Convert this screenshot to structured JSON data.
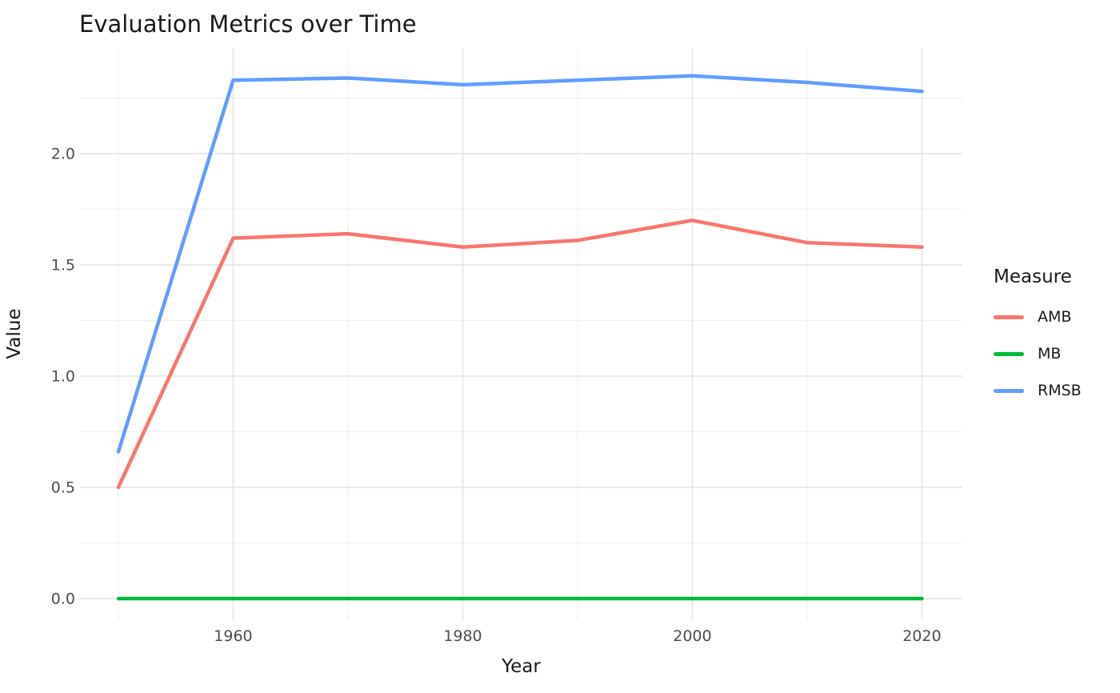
{
  "chart_data": {
    "type": "line",
    "title": "Evaluation Metrics over Time",
    "xlabel": "Year",
    "ylabel": "Value",
    "legend_title": "Measure",
    "legend_position": "right",
    "grid": true,
    "x": [
      1950,
      1960,
      1970,
      1980,
      1990,
      2000,
      2010,
      2020
    ],
    "series": [
      {
        "name": "AMB",
        "color": "#F8766D",
        "values": [
          0.5,
          1.62,
          1.64,
          1.58,
          1.61,
          1.7,
          1.6,
          1.58
        ]
      },
      {
        "name": "MB",
        "color": "#00BA38",
        "values": [
          0.0,
          0.0,
          0.0,
          0.0,
          0.0,
          0.0,
          0.0,
          0.0
        ]
      },
      {
        "name": "RMSB",
        "color": "#619CFF",
        "values": [
          0.66,
          2.33,
          2.34,
          2.31,
          2.33,
          2.35,
          2.32,
          2.28
        ]
      }
    ],
    "x_axis": {
      "major_ticks": [
        {
          "v": 1960,
          "label": "1960"
        },
        {
          "v": 1980,
          "label": "1980"
        },
        {
          "v": 2000,
          "label": "2000"
        },
        {
          "v": 2020,
          "label": "2020"
        }
      ],
      "minor_ticks": [
        1950,
        1970,
        1990,
        2010
      ],
      "range": [
        1946.5,
        2023.5
      ]
    },
    "y_axis": {
      "major_ticks": [
        {
          "v": 0.0,
          "label": "0.0"
        },
        {
          "v": 0.5,
          "label": "0.5"
        },
        {
          "v": 1.0,
          "label": "1.0"
        },
        {
          "v": 1.5,
          "label": "1.5"
        },
        {
          "v": 2.0,
          "label": "2.0"
        }
      ],
      "minor_ticks": [
        0.25,
        0.75,
        1.25,
        1.75,
        2.25
      ],
      "range": [
        -0.1,
        2.47
      ]
    }
  }
}
